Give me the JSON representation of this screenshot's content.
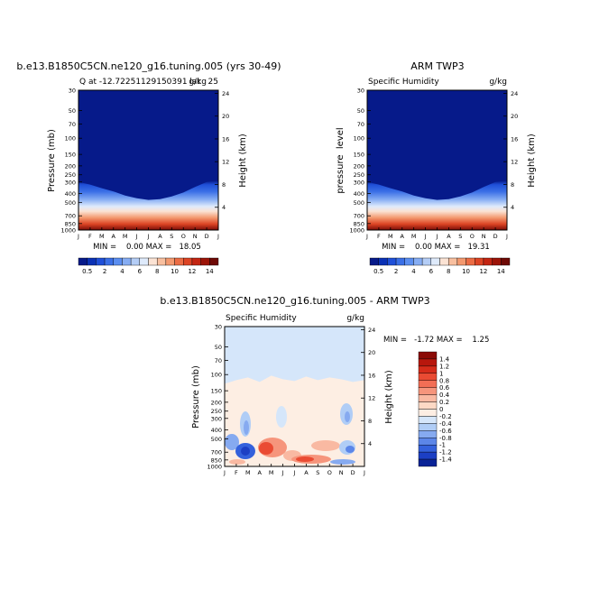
{
  "chart_data": [
    {
      "type": "heatmap",
      "title": "b.e13.B1850C5CN.ne120_g16.tuning.005 (yrs 30-49)",
      "left_label": "Q at -12.72251129150391 lat",
      "right_label": "g/kg",
      "right_label_extra": "25",
      "ylabel": "Pressure (mb)",
      "ylabel_right": "Height (km)",
      "stats": "MIN =    0.00 MAX =   18.05",
      "x_ticks": [
        "J",
        "F",
        "M",
        "A",
        "M",
        "J",
        "J",
        "A",
        "S",
        "O",
        "N",
        "D",
        "J"
      ],
      "y_ticks": [
        "30",
        "50",
        "70",
        "100",
        "150",
        "200",
        "250",
        "300",
        "400",
        "500",
        "700",
        "850",
        "1000"
      ],
      "height_ticks": [
        "24",
        "20",
        "16",
        "12",
        "8",
        "4"
      ],
      "colorbar_labels": [
        "0.5",
        "2",
        "4",
        "6",
        "8",
        "10",
        "12",
        "14"
      ],
      "colorbar_colors": [
        "#061a8a",
        "#0a31b5",
        "#1f4fd8",
        "#3a6fe6",
        "#5b8ef0",
        "#86adf3",
        "#b4cdf6",
        "#deeafb",
        "#fbe3d4",
        "#f8bf9f",
        "#f3996f",
        "#eb6c44",
        "#dc4424",
        "#c32512",
        "#9c1408",
        "#6e0905"
      ],
      "baseline_transition_mb": [
        300,
        320,
        350,
        380,
        420,
        450,
        470,
        460,
        430,
        390,
        340,
        300,
        290
      ]
    },
    {
      "type": "heatmap",
      "title": "ARM TWP3",
      "left_label": "Specific Humidity",
      "right_label": "g/kg",
      "ylabel": "pressure  level",
      "ylabel_right": "Height (km)",
      "stats": "MIN =    0.00 MAX =   19.31",
      "x_ticks": [
        "J",
        "F",
        "M",
        "A",
        "M",
        "J",
        "J",
        "A",
        "S",
        "O",
        "N",
        "D",
        "J"
      ],
      "y_ticks": [
        "30",
        "50",
        "70",
        "100",
        "150",
        "200",
        "250",
        "300",
        "400",
        "500",
        "700",
        "850",
        "1000"
      ],
      "height_ticks": [
        "24",
        "20",
        "16",
        "12",
        "8",
        "4"
      ],
      "colorbar_labels": [
        "0.5",
        "2",
        "4",
        "6",
        "8",
        "10",
        "12",
        "14"
      ],
      "baseline_transition_mb": [
        300,
        320,
        350,
        380,
        420,
        450,
        470,
        460,
        430,
        390,
        340,
        300,
        290
      ]
    },
    {
      "type": "heatmap",
      "title": "b.e13.B1850C5CN.ne120_g16.tuning.005 - ARM TWP3",
      "left_label": "Specific Humidity",
      "right_label": "g/kg",
      "ylabel": "Pressure (mb)",
      "ylabel_right": "Height (km)",
      "stats": "MIN =   -1.72 MAX =    1.25",
      "x_ticks": [
        "J",
        "F",
        "M",
        "A",
        "M",
        "J",
        "J",
        "A",
        "S",
        "O",
        "N",
        "D",
        "J"
      ],
      "y_ticks": [
        "30",
        "50",
        "70",
        "100",
        "150",
        "200",
        "250",
        "300",
        "400",
        "500",
        "700",
        "850",
        "1000"
      ],
      "height_ticks": [
        "24",
        "20",
        "16",
        "12",
        "8",
        "4"
      ],
      "colorbar_labels": [
        "1.4",
        "1.2",
        "1",
        "0.8",
        "0.6",
        "0.4",
        "0.2",
        "0",
        "-0.2",
        "-0.4",
        "-0.6",
        "-0.8",
        "-1",
        "-1.2",
        "-1.4"
      ],
      "colorbar_colors": [
        "#8b0b06",
        "#b8170d",
        "#d62c1a",
        "#ea4b33",
        "#f26e55",
        "#f6957c",
        "#f9b9a2",
        "#fcd9c5",
        "#fdeee3",
        "#d5e6fa",
        "#b0cdf6",
        "#86aaf0",
        "#5c86e8",
        "#3461dc",
        "#1c3fc4",
        "#0a2397"
      ],
      "upper_level_boundary_mb": 110
    }
  ]
}
